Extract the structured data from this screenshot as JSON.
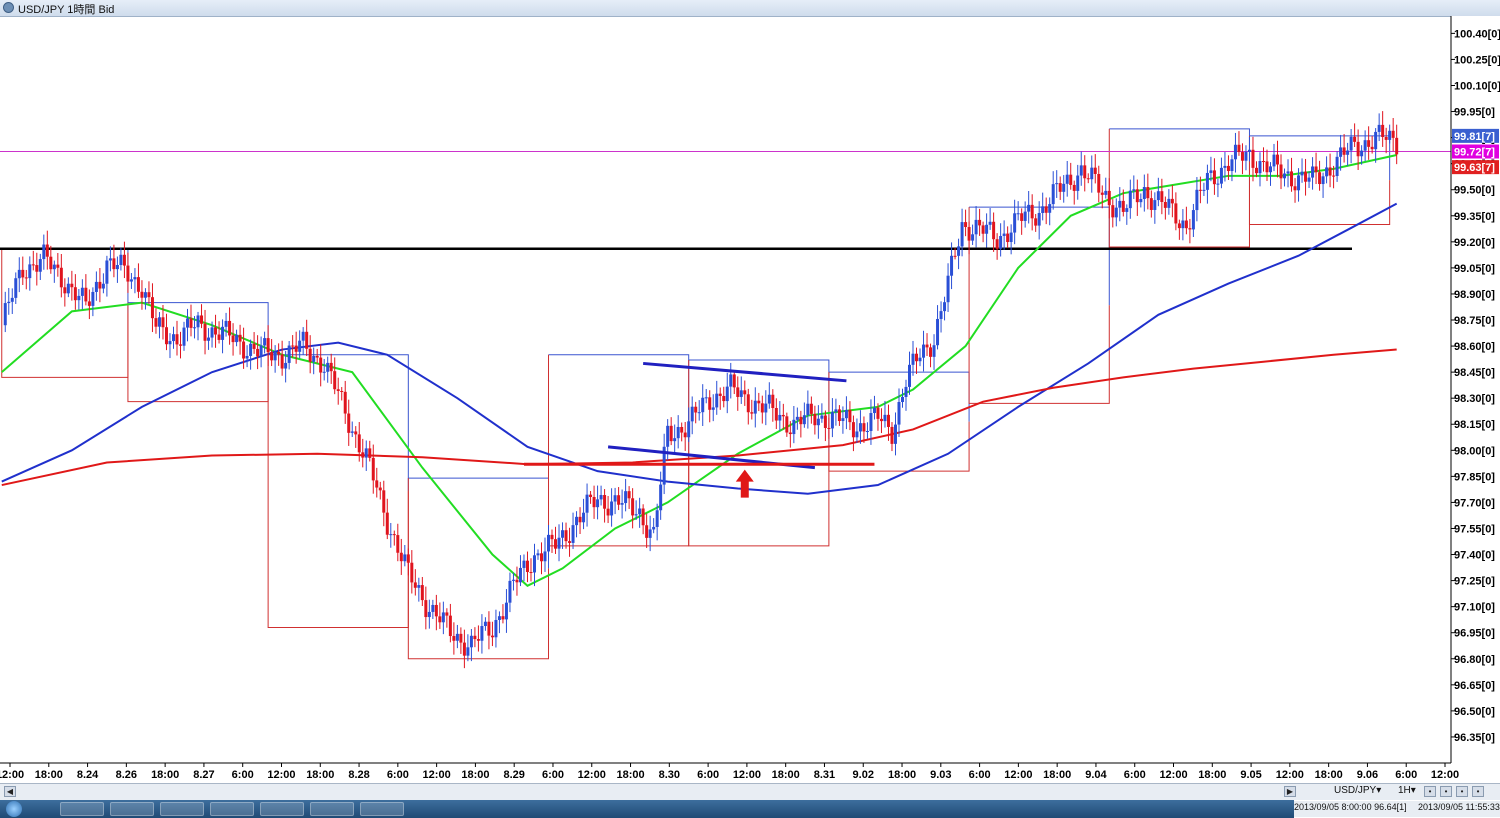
{
  "window": {
    "title": "USD/JPY 1時間 Bid"
  },
  "chart_data": {
    "type": "candlestick",
    "title": "USD/JPY 1時間 Bid",
    "ylim": [
      96.2,
      100.5
    ],
    "y_ticks": [
      "100.40[0]",
      "100.25[0]",
      "100.10[0]",
      "99.95[0]",
      "99.80[0]",
      "99.65[0]",
      "99.50[0]",
      "99.35[0]",
      "99.20[0]",
      "99.05[0]",
      "98.90[0]",
      "98.75[0]",
      "98.60[0]",
      "98.45[0]",
      "98.30[0]",
      "98.15[0]",
      "98.00[0]",
      "97.85[0]",
      "97.70[0]",
      "97.55[0]",
      "97.40[0]",
      "97.25[0]",
      "97.10[0]",
      "96.95[0]",
      "96.80[0]",
      "96.65[0]",
      "96.50[0]",
      "96.35[0]"
    ],
    "x_ticks": [
      "12:00",
      "18:00",
      "8.24",
      "8.26",
      "18:00",
      "8.27",
      "6:00",
      "12:00",
      "18:00",
      "8.28",
      "6:00",
      "12:00",
      "18:00",
      "8.29",
      "6:00",
      "12:00",
      "18:00",
      "8.30",
      "6:00",
      "12:00",
      "18:00",
      "8.31",
      "9.02",
      "18:00",
      "9.03",
      "6:00",
      "12:00",
      "18:00",
      "9.04",
      "6:00",
      "12:00",
      "18:00",
      "9.05",
      "12:00",
      "18:00",
      "9.06",
      "6:00",
      "12:00"
    ],
    "price_labels": [
      {
        "text": "99.81[7]",
        "value": 99.81,
        "color": "#3a5fd0"
      },
      {
        "text": "99.72[7]",
        "value": 99.72,
        "color": "#e000e0"
      },
      {
        "text": "99.63[7]",
        "value": 99.63,
        "color": "#e02020"
      }
    ],
    "horizontal_lines": [
      {
        "name": "resistance",
        "value": 99.16,
        "color": "#000000"
      },
      {
        "name": "current-bid",
        "value": 99.72,
        "color": "#cc33cc"
      }
    ],
    "ohlc_checkpoints": [
      [
        0,
        98.72
      ],
      [
        6,
        99.05
      ],
      [
        12,
        99.1
      ],
      [
        18,
        98.98
      ],
      [
        24,
        98.82
      ],
      [
        30,
        99.08
      ],
      [
        36,
        99.02
      ],
      [
        40,
        98.95
      ],
      [
        44,
        98.7
      ],
      [
        50,
        98.65
      ],
      [
        56,
        98.72
      ],
      [
        62,
        98.68
      ],
      [
        68,
        98.62
      ],
      [
        74,
        98.56
      ],
      [
        80,
        98.55
      ],
      [
        86,
        98.6
      ],
      [
        92,
        98.5
      ],
      [
        98,
        98.22
      ],
      [
        104,
        97.95
      ],
      [
        110,
        97.6
      ],
      [
        116,
        97.28
      ],
      [
        122,
        97.1
      ],
      [
        128,
        96.95
      ],
      [
        134,
        96.88
      ],
      [
        140,
        96.98
      ],
      [
        146,
        97.22
      ],
      [
        152,
        97.4
      ],
      [
        158,
        97.45
      ],
      [
        164,
        97.6
      ],
      [
        170,
        97.72
      ],
      [
        176,
        97.7
      ],
      [
        182,
        97.65
      ],
      [
        186,
        97.5
      ],
      [
        190,
        98.1
      ],
      [
        196,
        98.15
      ],
      [
        202,
        98.3
      ],
      [
        208,
        98.35
      ],
      [
        214,
        98.28
      ],
      [
        220,
        98.22
      ],
      [
        226,
        98.15
      ],
      [
        232,
        98.2
      ],
      [
        238,
        98.18
      ],
      [
        244,
        98.14
      ],
      [
        250,
        98.18
      ],
      [
        254,
        98.12
      ],
      [
        258,
        98.4
      ],
      [
        262,
        98.55
      ],
      [
        266,
        98.65
      ],
      [
        270,
        98.95
      ],
      [
        274,
        99.3
      ],
      [
        278,
        99.28
      ],
      [
        284,
        99.22
      ],
      [
        290,
        99.32
      ],
      [
        296,
        99.38
      ],
      [
        302,
        99.5
      ],
      [
        308,
        99.62
      ],
      [
        314,
        99.48
      ],
      [
        320,
        99.38
      ],
      [
        326,
        99.5
      ],
      [
        332,
        99.4
      ],
      [
        338,
        99.3
      ],
      [
        344,
        99.55
      ],
      [
        350,
        99.66
      ],
      [
        356,
        99.7
      ],
      [
        362,
        99.62
      ],
      [
        368,
        99.58
      ],
      [
        374,
        99.55
      ],
      [
        380,
        99.65
      ],
      [
        386,
        99.75
      ],
      [
        392,
        99.8
      ],
      [
        398,
        99.78
      ]
    ],
    "moving_averages": [
      {
        "color": "#22dd22",
        "points": [
          [
            0,
            98.45
          ],
          [
            20,
            98.8
          ],
          [
            40,
            98.85
          ],
          [
            60,
            98.72
          ],
          [
            80,
            98.55
          ],
          [
            100,
            98.45
          ],
          [
            120,
            97.9
          ],
          [
            140,
            97.4
          ],
          [
            150,
            97.22
          ],
          [
            160,
            97.32
          ],
          [
            175,
            97.55
          ],
          [
            190,
            97.7
          ],
          [
            210,
            97.98
          ],
          [
            230,
            98.2
          ],
          [
            250,
            98.25
          ],
          [
            260,
            98.35
          ],
          [
            275,
            98.6
          ],
          [
            290,
            99.05
          ],
          [
            305,
            99.35
          ],
          [
            320,
            99.48
          ],
          [
            335,
            99.53
          ],
          [
            350,
            99.58
          ],
          [
            365,
            99.58
          ],
          [
            380,
            99.62
          ],
          [
            398,
            99.7
          ]
        ]
      },
      {
        "color": "#2030cc",
        "points": [
          [
            0,
            97.82
          ],
          [
            20,
            98.0
          ],
          [
            40,
            98.25
          ],
          [
            60,
            98.45
          ],
          [
            80,
            98.58
          ],
          [
            96,
            98.62
          ],
          [
            110,
            98.55
          ],
          [
            130,
            98.3
          ],
          [
            150,
            98.02
          ],
          [
            170,
            97.88
          ],
          [
            190,
            97.82
          ],
          [
            210,
            97.78
          ],
          [
            230,
            97.75
          ],
          [
            250,
            97.8
          ],
          [
            270,
            97.98
          ],
          [
            290,
            98.25
          ],
          [
            310,
            98.5
          ],
          [
            330,
            98.78
          ],
          [
            350,
            98.96
          ],
          [
            370,
            99.12
          ],
          [
            385,
            99.28
          ],
          [
            398,
            99.42
          ]
        ]
      },
      {
        "color": "#e01818",
        "points": [
          [
            0,
            97.8
          ],
          [
            30,
            97.93
          ],
          [
            60,
            97.97
          ],
          [
            90,
            97.98
          ],
          [
            120,
            97.96
          ],
          [
            150,
            97.92
          ],
          [
            180,
            97.93
          ],
          [
            210,
            97.97
          ],
          [
            240,
            98.03
          ],
          [
            260,
            98.12
          ],
          [
            280,
            98.28
          ],
          [
            300,
            98.36
          ],
          [
            320,
            98.42
          ],
          [
            340,
            98.47
          ],
          [
            360,
            98.51
          ],
          [
            380,
            98.55
          ],
          [
            398,
            98.58
          ]
        ]
      }
    ],
    "daily_ranges": [
      {
        "x0": 0,
        "x1": 36,
        "high": 99.16,
        "low": 98.42
      },
      {
        "x0": 36,
        "x1": 76,
        "high": 98.85,
        "low": 98.28
      },
      {
        "x0": 76,
        "x1": 116,
        "high": 98.55,
        "low": 96.98
      },
      {
        "x0": 116,
        "x1": 156,
        "high": 97.84,
        "low": 96.8
      },
      {
        "x0": 156,
        "x1": 196,
        "high": 98.55,
        "low": 97.45
      },
      {
        "x0": 196,
        "x1": 236,
        "high": 98.52,
        "low": 97.45
      },
      {
        "x0": 236,
        "x1": 276,
        "high": 98.45,
        "low": 97.88
      },
      {
        "x0": 276,
        "x1": 316,
        "high": 99.4,
        "low": 98.27
      },
      {
        "x0": 316,
        "x1": 356,
        "high": 99.85,
        "low": 99.17
      },
      {
        "x0": 356,
        "x1": 396,
        "high": 99.81,
        "low": 99.3
      }
    ],
    "trendlines": [
      {
        "color": "#2020c0",
        "from": [
          183,
          98.5
        ],
        "to": [
          241,
          98.4
        ]
      },
      {
        "color": "#2020c0",
        "from": [
          173,
          98.02
        ],
        "to": [
          232,
          97.9
        ]
      },
      {
        "color": "#e01818",
        "from": [
          149,
          97.92
        ],
        "to": [
          249,
          97.92
        ]
      }
    ],
    "annotations": [
      {
        "type": "arrow-up",
        "color": "#e01818",
        "x": 212,
        "value": 97.9
      }
    ]
  },
  "bottom_bar": {
    "symbol": "USD/JPY",
    "timeframe": "1H",
    "cursor_info": "2013/09/05 8:00:00 96.64[1]",
    "time_info": "2013/09/05 11:55:33"
  }
}
